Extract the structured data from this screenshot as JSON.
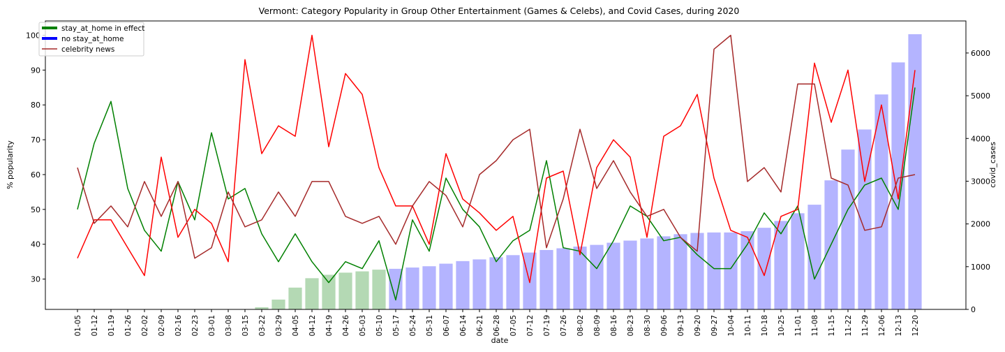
{
  "chart_data": {
    "type": "line+bar",
    "title": "Vermont: Category Popularity in Group Other Entertainment (Games & Celebs), and Covid Cases, during 2020",
    "xlabel": "date",
    "ylabel_left": "% popularity",
    "ylabel_right": "covid_cases",
    "ylim_left": [
      21.3,
      104.1
    ],
    "ylim_right": [
      0,
      6750
    ],
    "yticks_left": [
      30,
      40,
      50,
      60,
      70,
      80,
      90,
      100
    ],
    "yticks_right": [
      0,
      1000,
      2000,
      3000,
      4000,
      5000,
      6000
    ],
    "grid": false,
    "legend_position": "upper left",
    "legend": [
      {
        "label": "stay_at_home in effect",
        "color": "#008000"
      },
      {
        "label": "no stay_at_home",
        "color": "#0000ff"
      },
      {
        "label": "celebrity news",
        "color": "#a52a2a"
      }
    ],
    "x": [
      "01-05",
      "01-12",
      "01-19",
      "01-26",
      "02-02",
      "02-09",
      "02-16",
      "02-23",
      "03-01",
      "03-08",
      "03-15",
      "03-22",
      "03-29",
      "04-05",
      "04-12",
      "04-19",
      "04-26",
      "05-03",
      "05-10",
      "05-17",
      "05-24",
      "05-31",
      "06-07",
      "06-14",
      "06-21",
      "06-28",
      "07-05",
      "07-12",
      "07-19",
      "07-26",
      "08-02",
      "08-09",
      "08-16",
      "08-23",
      "08-30",
      "09-06",
      "09-13",
      "09-20",
      "09-27",
      "10-04",
      "10-11",
      "10-18",
      "10-25",
      "11-01",
      "11-08",
      "11-15",
      "11-22",
      "11-29",
      "12-06",
      "12-13",
      "12-20"
    ],
    "series": [
      {
        "name": "",
        "color": "#008000",
        "axis": "left",
        "values": [
          50,
          69,
          81,
          56,
          44,
          38,
          58,
          47,
          72,
          53,
          56,
          43,
          35,
          43,
          35,
          29,
          35,
          33,
          41,
          24,
          47,
          38,
          59,
          50,
          45,
          35,
          41,
          44,
          64,
          39,
          38,
          33,
          41,
          51,
          48,
          41,
          42,
          37,
          33,
          33,
          40,
          49,
          43,
          51,
          30,
          40,
          50,
          57,
          59,
          50,
          85
        ]
      },
      {
        "name": "",
        "color": "#ff0000",
        "axis": "left",
        "values": [
          36,
          47,
          47,
          39,
          31,
          65,
          42,
          50,
          46,
          35,
          93,
          66,
          74,
          71,
          100,
          68,
          89,
          83,
          62,
          51,
          51,
          40,
          66,
          53,
          49,
          44,
          48,
          29,
          59,
          61,
          37,
          62,
          70,
          65,
          42,
          71,
          74,
          83,
          59,
          44,
          42,
          31,
          48,
          50,
          92,
          75,
          90,
          58,
          80,
          53,
          90
        ]
      },
      {
        "name": "celebrity news",
        "color": "#a52a2a",
        "axis": "left",
        "values": [
          62,
          46,
          51,
          45,
          58,
          48,
          58,
          36,
          39,
          55,
          45,
          47,
          55,
          48,
          58,
          58,
          48,
          46,
          48,
          40,
          51,
          58,
          54,
          45,
          60,
          64,
          70,
          73,
          39,
          53,
          73,
          56,
          64,
          55,
          48,
          50,
          42,
          38,
          96,
          100,
          58,
          62,
          55,
          86,
          86,
          59,
          57,
          44,
          45,
          59,
          60
        ]
      }
    ],
    "bars": {
      "name": "covid_cases",
      "axis": "right",
      "values": [
        0,
        0,
        0,
        0,
        0,
        0,
        0,
        0,
        0,
        0,
        0,
        50,
        230,
        510,
        730,
        810,
        860,
        890,
        930,
        950,
        980,
        1010,
        1070,
        1130,
        1170,
        1220,
        1270,
        1330,
        1390,
        1430,
        1470,
        1510,
        1560,
        1610,
        1660,
        1710,
        1760,
        1790,
        1800,
        1800,
        1830,
        1910,
        2070,
        2250,
        2450,
        3020,
        3740,
        4210,
        5030,
        5780,
        6440
      ],
      "stay_at_home_color": "#3a9a3a",
      "no_stay_at_home_color": "#3a3aff",
      "stay_at_home_range": [
        "03-22",
        "05-10"
      ]
    }
  }
}
